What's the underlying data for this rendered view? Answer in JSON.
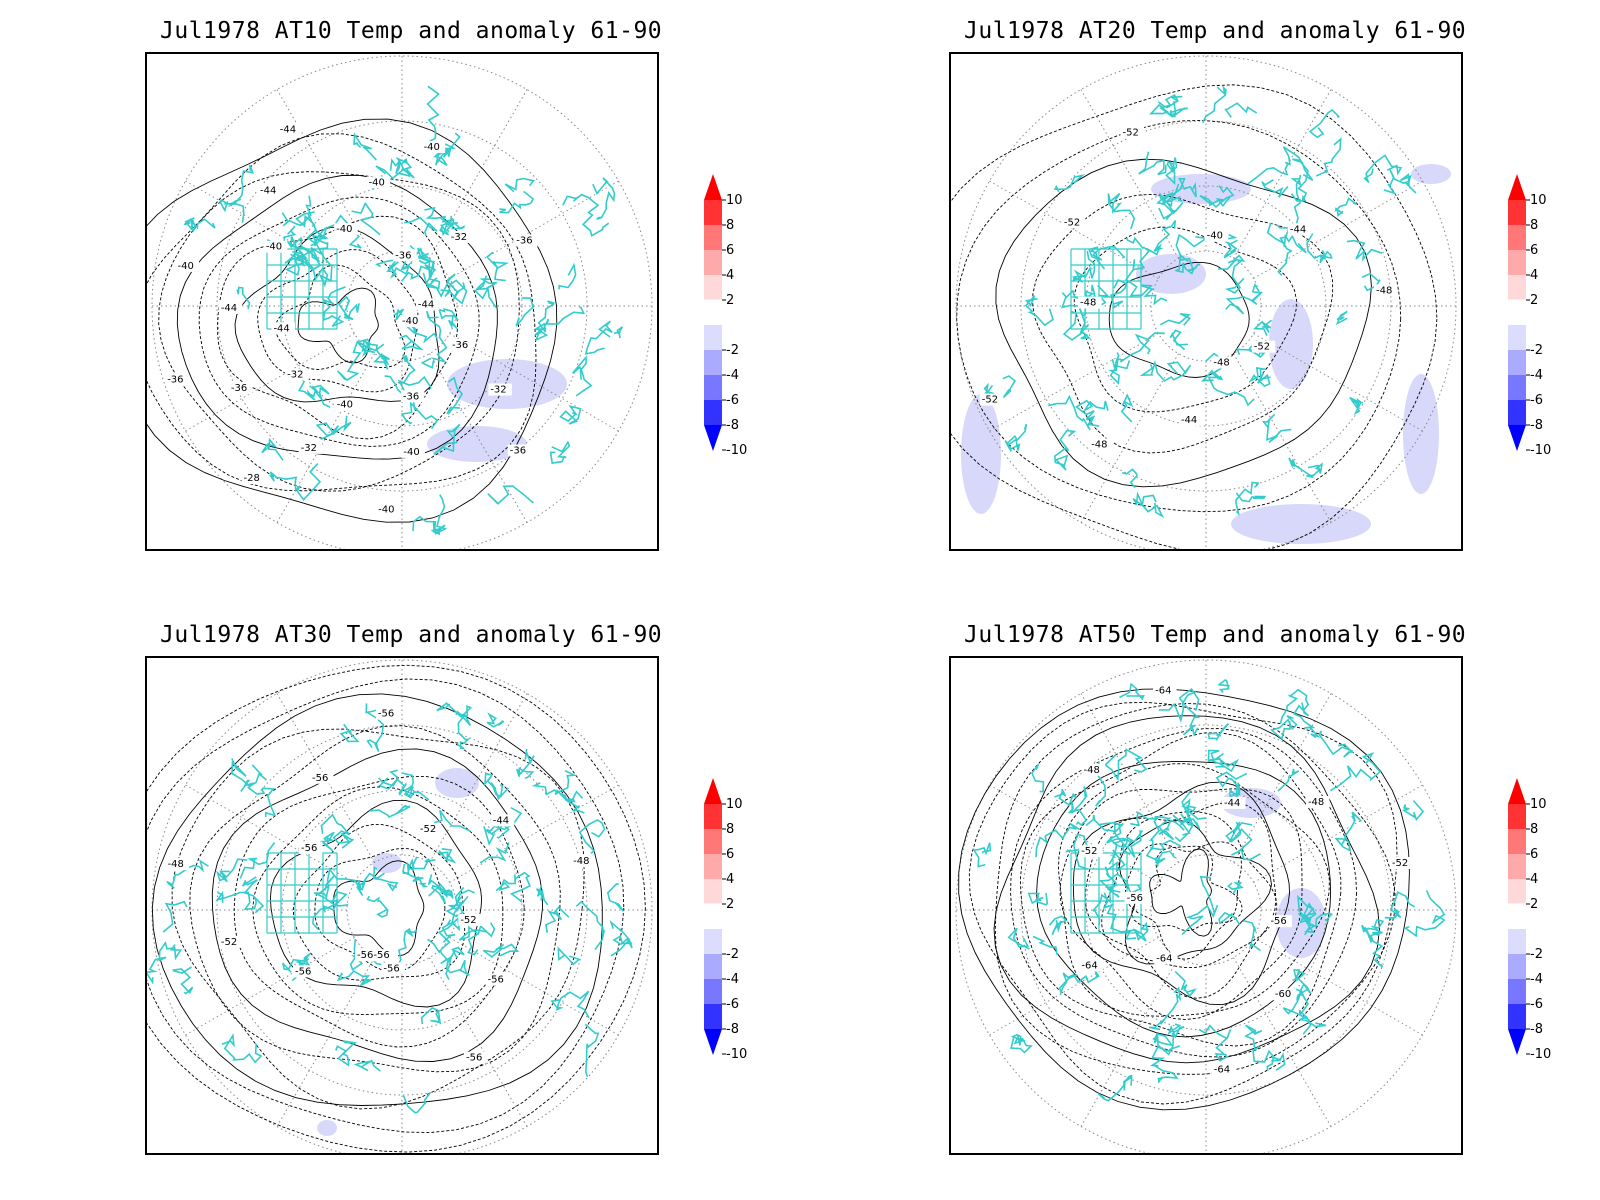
{
  "panels": [
    {
      "title": "Jul1978 AT10 Temp and anomaly 61-90",
      "contour_labels": [
        "-40",
        "-36",
        "-32",
        "-36",
        "-36",
        "-40",
        "-40",
        "-40",
        "-32",
        "-28",
        "-32",
        "-36",
        "-36",
        "-44",
        "-44",
        "-40",
        "-40",
        "-40",
        "-44",
        "-44",
        "-40",
        "-40",
        "-40",
        "-36",
        "-32",
        "-36",
        "-44"
      ]
    },
    {
      "title": "Jul1978 AT20 Temp and anomaly 61-90",
      "contour_labels": [
        "-48",
        "-44",
        "-48",
        "-52",
        "-48",
        "-52",
        "-52",
        "-40",
        "-44",
        "-48",
        "-52"
      ]
    },
    {
      "title": "Jul1978 AT30 Temp and anomaly 61-90",
      "contour_labels": [
        "-56-56",
        "-56",
        "-52",
        "-48",
        "-56",
        "-56",
        "-56",
        "-52",
        "-44",
        "-48",
        "-52",
        "-56",
        "-56",
        "-56"
      ]
    },
    {
      "title": "Jul1978 AT50 Temp and anomaly 61-90",
      "contour_labels": [
        "-56",
        "-52",
        "-48",
        "-64",
        "-44",
        "-48",
        "-52",
        "-56",
        "-60",
        "-64",
        "-64",
        "-64"
      ]
    }
  ],
  "colorbar": {
    "labels": [
      "10",
      "8",
      "6",
      "4",
      "2",
      "-2",
      "-4",
      "-6",
      "-8",
      "-10"
    ],
    "colors": [
      "#ff0000",
      "#ff3333",
      "#ff7777",
      "#ffaaaa",
      "#ffd9d9",
      "#ffffff",
      "#dcdcff",
      "#aaaaff",
      "#7777ff",
      "#3333ff",
      "#0000ff"
    ]
  },
  "colors": {
    "coastline": "#33cccc",
    "contour": "#000000",
    "anomaly_fill": "#d8d8fa",
    "grid": "#888888"
  }
}
